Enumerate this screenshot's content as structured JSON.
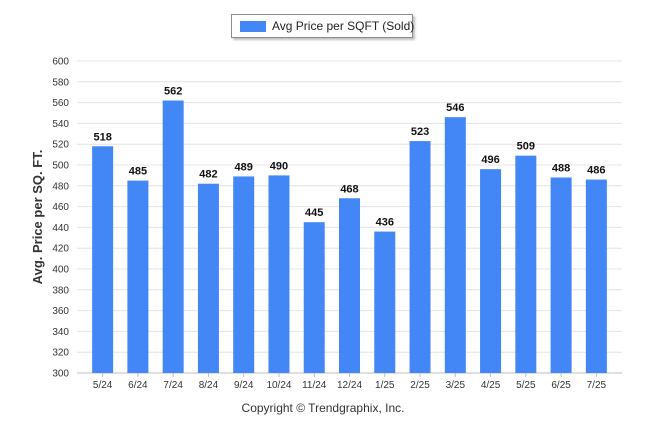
{
  "chart_data": {
    "type": "bar",
    "categories": [
      "5/24",
      "6/24",
      "7/24",
      "8/24",
      "9/24",
      "10/24",
      "11/24",
      "12/24",
      "1/25",
      "2/25",
      "3/25",
      "4/25",
      "5/25",
      "6/25",
      "7/25"
    ],
    "series": [
      {
        "name": "Avg Price per SQFT (Sold)",
        "values": [
          518,
          485,
          562,
          482,
          489,
          490,
          445,
          468,
          436,
          523,
          546,
          496,
          509,
          488,
          486
        ]
      }
    ],
    "title": "",
    "xlabel": "",
    "ylabel": "Avg. Price per SQ. FT.",
    "ylim": [
      300,
      600
    ],
    "yticks": [
      300,
      320,
      340,
      360,
      380,
      400,
      420,
      440,
      460,
      480,
      500,
      520,
      540,
      560,
      580,
      600
    ],
    "grid": true,
    "legend_position": "top-center",
    "bar_color": "#4287f5",
    "data_labels": true
  },
  "footer": {
    "copyright": "Copyright © Trendgraphix, Inc."
  }
}
